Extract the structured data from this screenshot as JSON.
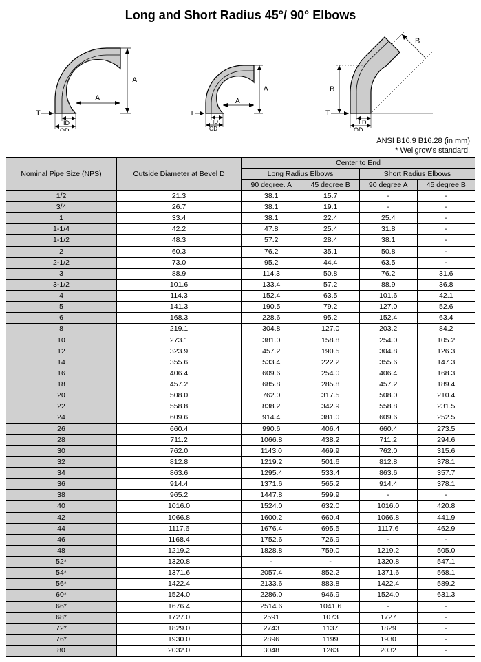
{
  "title": "Long and Short Radius 45°/ 90° Elbows",
  "note_line1": "ANSI B16.9 B16.28 (in mm)",
  "note_line2": "*  Wellgrow's standard.",
  "header": {
    "nps": "Nominal Pipe Size (NPS)",
    "od": "Outside Diameter at Bevel D",
    "center": "Center to End",
    "long": "Long Radius Elbows",
    "short": "Short Radius Elbows",
    "d90": "90 degree. A",
    "d45": "45 degree B",
    "s90": "90 degree A",
    "s45": "45 degree B"
  },
  "columns": [
    "nps",
    "od",
    "lr90",
    "lr45",
    "sr90",
    "sr45"
  ],
  "rows": [
    [
      "1/2",
      "21.3",
      "38.1",
      "15.7",
      "-",
      "-"
    ],
    [
      "3/4",
      "26.7",
      "38.1",
      "19.1",
      "-",
      "-"
    ],
    [
      "1",
      "33.4",
      "38.1",
      "22.4",
      "25.4",
      "-"
    ],
    [
      "1-1/4",
      "42.2",
      "47.8",
      "25.4",
      "31.8",
      "-"
    ],
    [
      "1-1/2",
      "48.3",
      "57.2",
      "28.4",
      "38.1",
      "-"
    ],
    [
      "2",
      "60.3",
      "76.2",
      "35.1",
      "50.8",
      "-"
    ],
    [
      "2-1/2",
      "73.0",
      "95.2",
      "44.4",
      "63.5",
      "-"
    ],
    [
      "3",
      "88.9",
      "114.3",
      "50.8",
      "76.2",
      "31.6"
    ],
    [
      "3-1/2",
      "101.6",
      "133.4",
      "57.2",
      "88.9",
      "36.8"
    ],
    [
      "4",
      "114.3",
      "152.4",
      "63.5",
      "101.6",
      "42.1"
    ],
    [
      "5",
      "141.3",
      "190.5",
      "79.2",
      "127.0",
      "52.6"
    ],
    [
      "6",
      "168.3",
      "228.6",
      "95.2",
      "152.4",
      "63.4"
    ],
    [
      "8",
      "219.1",
      "304.8",
      "127.0",
      "203.2",
      "84.2"
    ],
    [
      "10",
      "273.1",
      "381.0",
      "158.8",
      "254.0",
      "105.2"
    ],
    [
      "12",
      "323.9",
      "457.2",
      "190.5",
      "304.8",
      "126.3"
    ],
    [
      "14",
      "355.6",
      "533.4",
      "222.2",
      "355.6",
      "147.3"
    ],
    [
      "16",
      "406.4",
      "609.6",
      "254.0",
      "406.4",
      "168.3"
    ],
    [
      "18",
      "457.2",
      "685.8",
      "285.8",
      "457.2",
      "189.4"
    ],
    [
      "20",
      "508.0",
      "762.0",
      "317.5",
      "508.0",
      "210.4"
    ],
    [
      "22",
      "558.8",
      "838.2",
      "342.9",
      "558.8",
      "231.5"
    ],
    [
      "24",
      "609.6",
      "914.4",
      "381.0",
      "609.6",
      "252.5"
    ],
    [
      "26",
      "660.4",
      "990.6",
      "406.4",
      "660.4",
      "273.5"
    ],
    [
      "28",
      "711.2",
      "1066.8",
      "438.2",
      "711.2",
      "294.6"
    ],
    [
      "30",
      "762.0",
      "1143.0",
      "469.9",
      "762.0",
      "315.6"
    ],
    [
      "32",
      "812.8",
      "1219.2",
      "501.6",
      "812.8",
      "378.1"
    ],
    [
      "34",
      "863.6",
      "1295.4",
      "533.4",
      "863.6",
      "357.7"
    ],
    [
      "36",
      "914.4",
      "1371.6",
      "565.2",
      "914.4",
      "378.1"
    ],
    [
      "38",
      "965.2",
      "1447.8",
      "599.9",
      "-",
      "-"
    ],
    [
      "40",
      "1016.0",
      "1524.0",
      "632.0",
      "1016.0",
      "420.8"
    ],
    [
      "42",
      "1066.8",
      "1600.2",
      "660.4",
      "1066.8",
      "441.9"
    ],
    [
      "44",
      "1117.6",
      "1676.4",
      "695.5",
      "1117.6",
      "462.9"
    ],
    [
      "46",
      "1168.4",
      "1752.6",
      "726.9",
      "-",
      "-"
    ],
    [
      "48",
      "1219.2",
      "1828.8",
      "759.0",
      "1219.2",
      "505.0"
    ],
    [
      "52*",
      "1320.8",
      "-",
      "-",
      "1320.8",
      "547.1"
    ],
    [
      "54*",
      "1371.6",
      "2057.4",
      "852.2",
      "1371.6",
      "568.1"
    ],
    [
      "56*",
      "1422.4",
      "2133.6",
      "883.8",
      "1422.4",
      "589.2"
    ],
    [
      "60*",
      "1524.0",
      "2286.0",
      "946.9",
      "1524.0",
      "631.3"
    ],
    [
      "66*",
      "1676.4",
      "2514.6",
      "1041.6",
      "-",
      "-"
    ],
    [
      "68*",
      "1727.0",
      "2591",
      "1073",
      "1727",
      "-"
    ],
    [
      "72*",
      "1829.0",
      "2743",
      "1137",
      "1829",
      "-"
    ],
    [
      "76*",
      "1930.0",
      "2896",
      "1199",
      "1930",
      "-"
    ],
    [
      "80",
      "2032.0",
      "3048",
      "1263",
      "2032",
      "-"
    ]
  ],
  "style": {
    "header_bg": "#d0d0d0",
    "border_color": "#000000",
    "font_size_table": 10.5,
    "font_size_title": 18,
    "diagram_stroke": "#000000",
    "diagram_fill": "#cccccc"
  }
}
